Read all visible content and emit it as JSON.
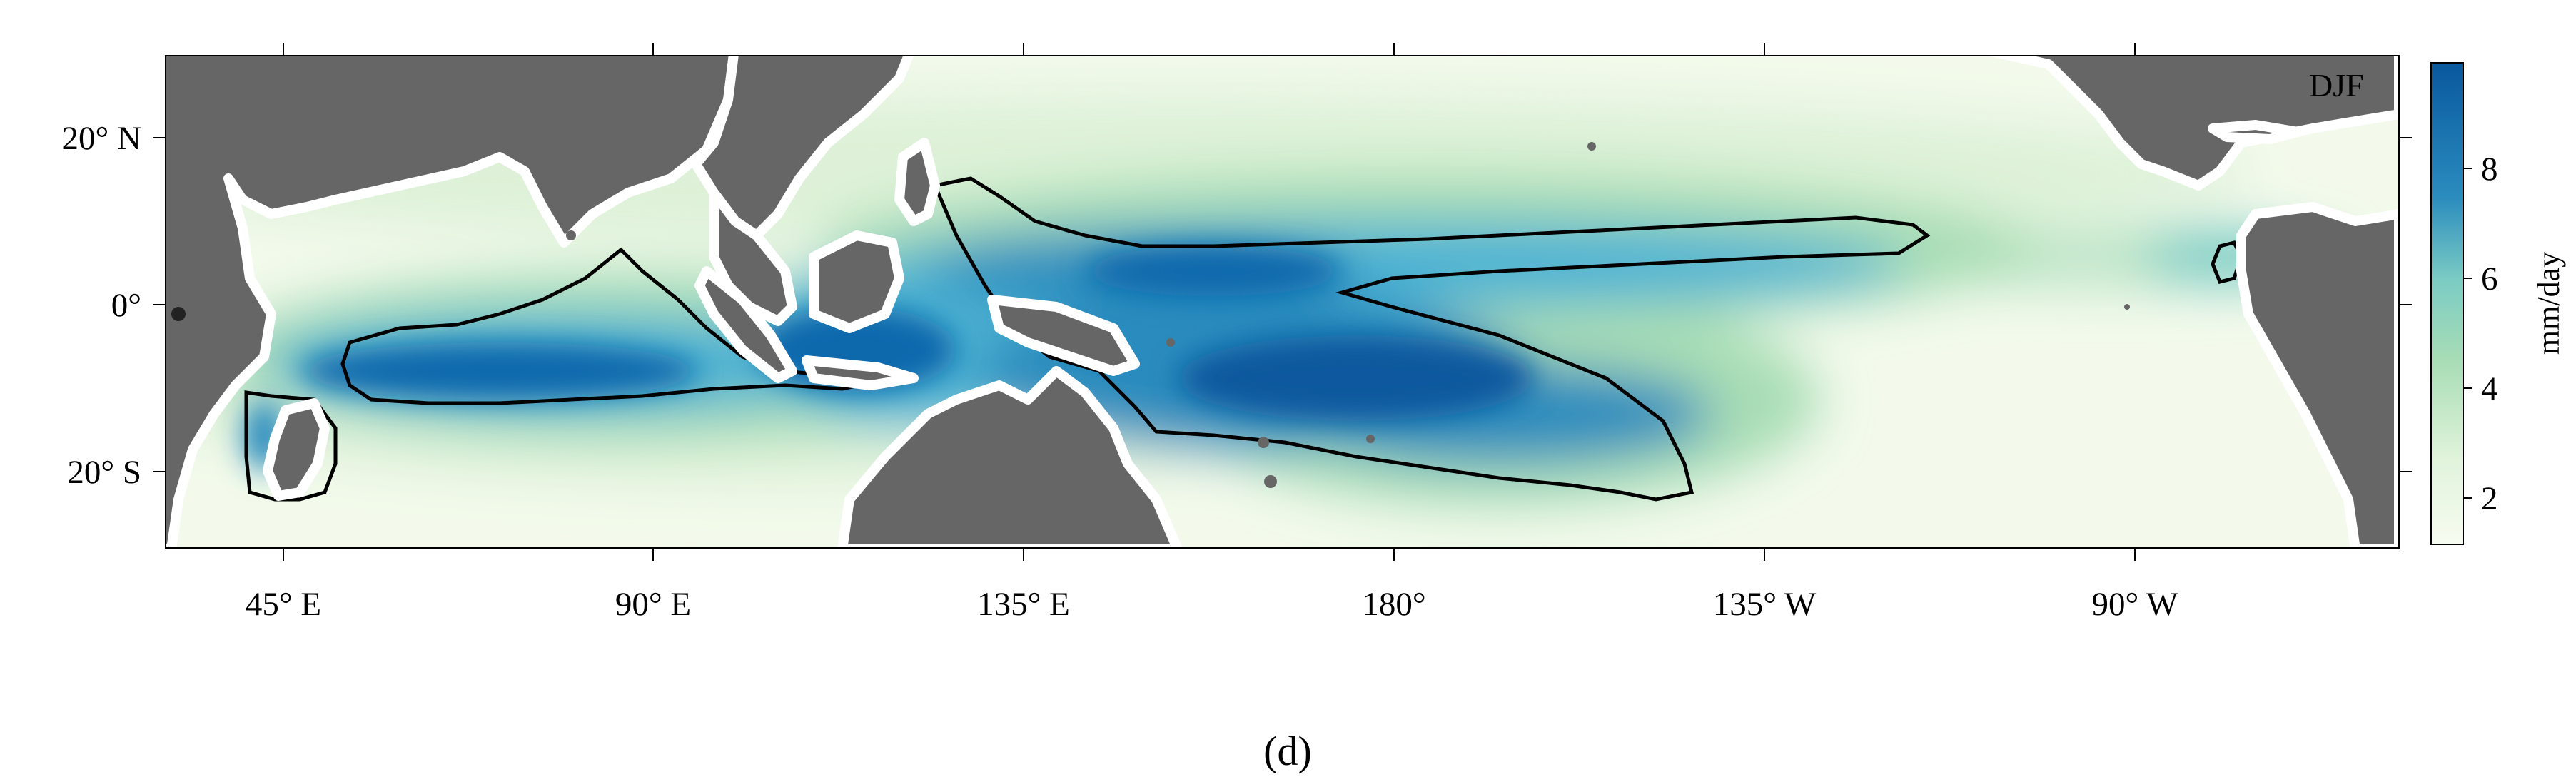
{
  "map": {
    "season": "DJF",
    "panel_label": "(d)",
    "x_ticks": [
      "45° E",
      "90° E",
      "135° E",
      "180°",
      "135° W",
      "90° W"
    ],
    "y_ticks": [
      "20° N",
      "0°",
      "20° S"
    ],
    "land_color": "#666666",
    "coast_mask_color": "#ffffff",
    "contour_color": "#000000"
  },
  "colorbar": {
    "label": "mm/day",
    "ticks": [
      "8",
      "6",
      "4",
      "2"
    ],
    "colors": [
      "#f7fcf0",
      "#ccebc5",
      "#7bccc4",
      "#2b8cbe",
      "#08589e"
    ]
  }
}
